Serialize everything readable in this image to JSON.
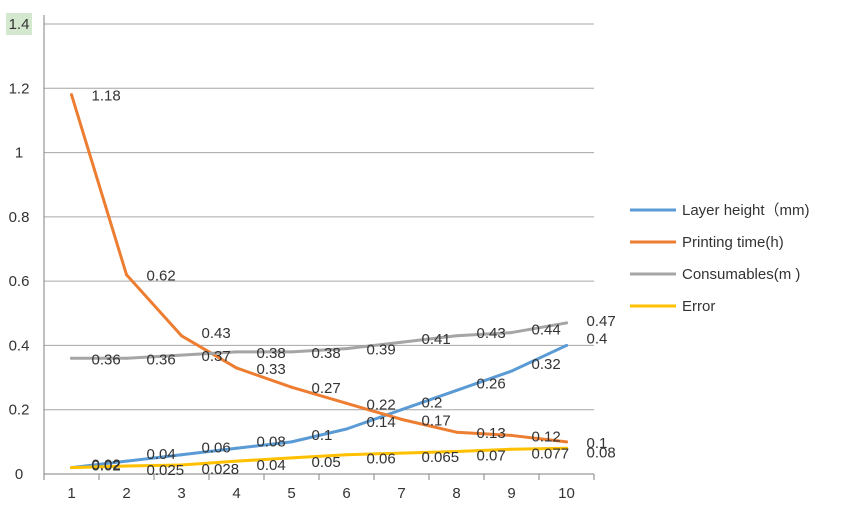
{
  "chart_data": {
    "type": "line",
    "x": [
      1,
      2,
      3,
      4,
      5,
      6,
      7,
      8,
      9,
      10
    ],
    "ylim": [
      0,
      1.4
    ],
    "yticks": [
      "0",
      "0.2",
      "0.4",
      "0.6",
      "0.8",
      "1",
      "1.2",
      "1.4"
    ],
    "xticks": [
      "1",
      "2",
      "3",
      "4",
      "5",
      "6",
      "7",
      "8",
      "9",
      "10"
    ],
    "grid": true,
    "legend_position": "right",
    "series": [
      {
        "name": "Layer height（mm)",
        "color": "#5b9bd5",
        "values": [
          0.02,
          0.04,
          0.06,
          0.08,
          0.1,
          0.14,
          0.2,
          0.26,
          0.32,
          0.4
        ],
        "labels": [
          "0.02",
          "0.04",
          "0.06",
          "0.08",
          "0.1",
          "0.14",
          "0.2",
          "0.26",
          "0.32",
          "0.4"
        ]
      },
      {
        "name": "Printing time(h)",
        "color": "#ed7d31",
        "values": [
          1.18,
          0.62,
          0.43,
          0.33,
          0.27,
          0.22,
          0.17,
          0.13,
          0.12,
          0.1
        ],
        "labels": [
          "1.18",
          "0.62",
          "0.43",
          "0.33",
          "0.27",
          "0.22",
          "0.17",
          "0.13",
          "0.12",
          "0.1"
        ]
      },
      {
        "name": "Consumables(m )",
        "color": "#a5a5a5",
        "values": [
          0.36,
          0.36,
          0.37,
          0.38,
          0.38,
          0.39,
          0.41,
          0.43,
          0.44,
          0.47
        ],
        "labels": [
          "0.36",
          "0.36",
          "0.37",
          "0.38",
          "0.38",
          "0.39",
          "0.41",
          "0.43",
          "0.44",
          "0.47"
        ]
      },
      {
        "name": "Error",
        "color": "#ffc000",
        "values": [
          0.02,
          0.025,
          0.028,
          0.04,
          0.05,
          0.06,
          0.065,
          0.07,
          0.077,
          0.08
        ],
        "labels": [
          "0.02",
          "0.025",
          "0.028",
          "0.04",
          "0.05",
          "0.06",
          "0.065",
          "0.07",
          "0.077",
          "0.08"
        ]
      }
    ]
  }
}
